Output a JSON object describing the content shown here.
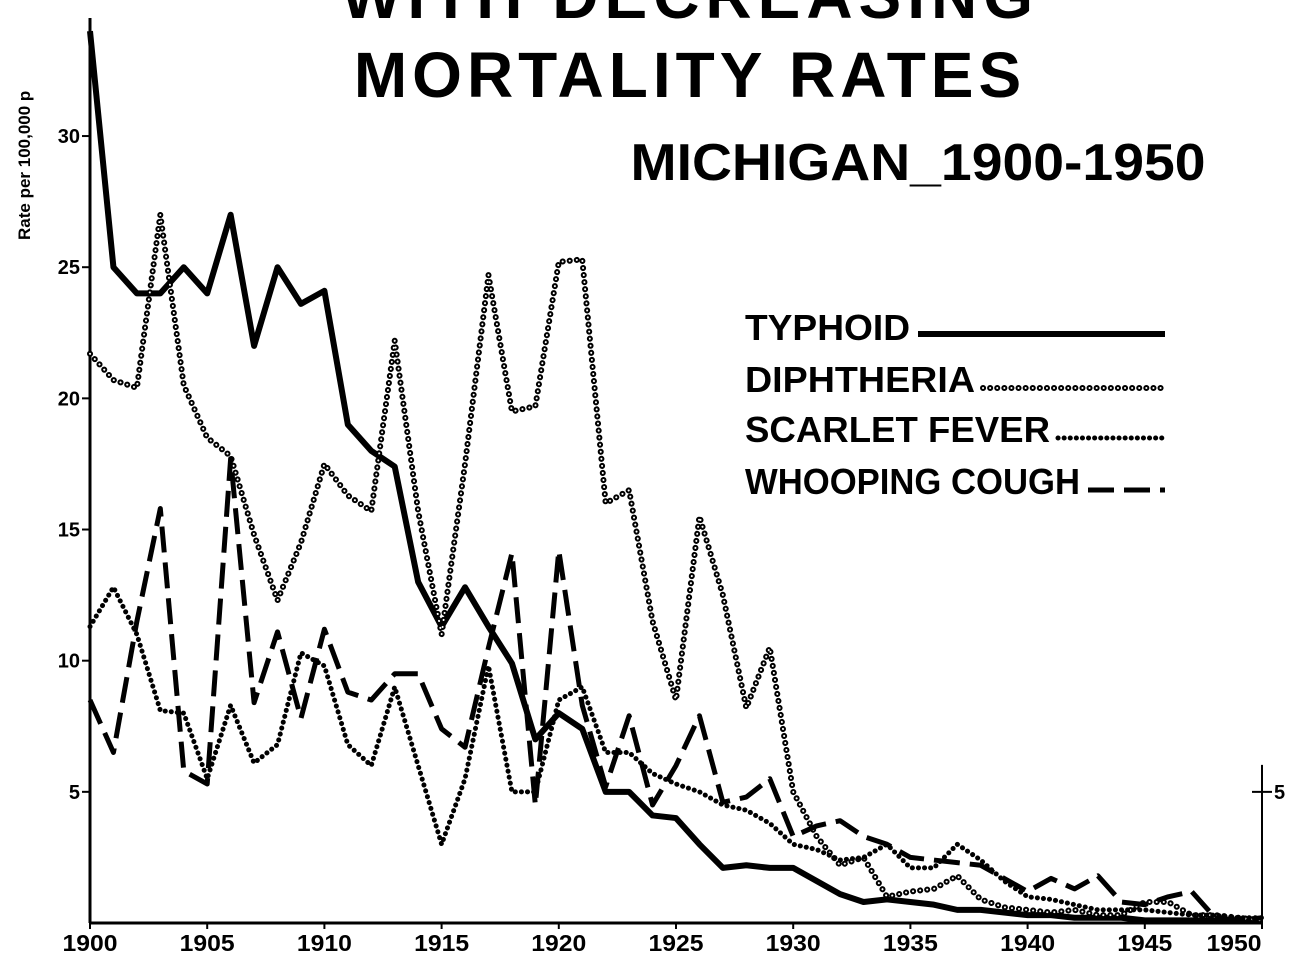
{
  "chart_data": {
    "type": "line",
    "title": "WITH DECREASING",
    "title_line2": "MORTALITY RATES",
    "subtitle": "MICHIGAN_1900-1950",
    "ylabel": "Rate per 100,000 p",
    "x": [
      1900,
      1901,
      1902,
      1903,
      1904,
      1905,
      1906,
      1907,
      1908,
      1909,
      1910,
      1911,
      1912,
      1913,
      1914,
      1915,
      1916,
      1917,
      1918,
      1919,
      1920,
      1921,
      1922,
      1923,
      1924,
      1925,
      1926,
      1927,
      1928,
      1929,
      1930,
      1931,
      1932,
      1933,
      1934,
      1935,
      1936,
      1937,
      1938,
      1939,
      1940,
      1941,
      1942,
      1943,
      1944,
      1945,
      1946,
      1947,
      1948,
      1949,
      1950
    ],
    "xlim": [
      1900,
      1950
    ],
    "xticks": [
      1900,
      1905,
      1910,
      1915,
      1920,
      1925,
      1930,
      1935,
      1940,
      1945,
      1950
    ],
    "ylim": [
      0,
      34.5
    ],
    "yticks": [
      5,
      10,
      15,
      20,
      25,
      30
    ],
    "y2lim": [
      0,
      34.5
    ],
    "y2ticks": [
      5
    ],
    "legend": "upper right",
    "series": [
      {
        "name": "TYPHOID",
        "color": "#000000",
        "style": "solid",
        "values": [
          34,
          25,
          24,
          24,
          25,
          24,
          27,
          22,
          25,
          23.6,
          24.1,
          19,
          18,
          17.4,
          13,
          11.3,
          12.8,
          11.3,
          9.9,
          7,
          8,
          7.4,
          5,
          5,
          4.1,
          4,
          3,
          2.1,
          2.2,
          2.1,
          2.1,
          1.6,
          1.1,
          0.8,
          0.9,
          0.8,
          0.7,
          0.5,
          0.5,
          0.4,
          0.3,
          0.3,
          0.2,
          0.2,
          0.2,
          0.1,
          0.1,
          0.1,
          0.1,
          0.1,
          0.1
        ]
      },
      {
        "name": "DIPHTHERIA",
        "color": "#000000",
        "style": "circles",
        "values": [
          21.7,
          20.7,
          20.4,
          27,
          20.5,
          18.5,
          17.8,
          14.8,
          12.3,
          14.5,
          17.5,
          16.3,
          15.7,
          22.2,
          15.7,
          11,
          17.5,
          24.7,
          19.5,
          19.7,
          25.2,
          25.3,
          16,
          16.5,
          11.5,
          8.5,
          15.5,
          12.5,
          8.2,
          10.5,
          5,
          3.3,
          2.2,
          2.5,
          1,
          1.2,
          1.3,
          1.8,
          0.9,
          0.6,
          0.5,
          0.4,
          0.5,
          0.3,
          0.3,
          0.8,
          0.8,
          0.3,
          0.3,
          0.2,
          0.1
        ]
      },
      {
        "name": "SCARLET FEVER",
        "color": "#000000",
        "style": "dots",
        "values": [
          11.3,
          12.8,
          11,
          8.1,
          8,
          5.5,
          8.3,
          6.1,
          6.8,
          10.3,
          9.8,
          6.8,
          6,
          9,
          6,
          3,
          5.5,
          9.8,
          5,
          5,
          8.5,
          9,
          6.5,
          6.5,
          5.7,
          5.3,
          5,
          4.5,
          4.3,
          3.8,
          3,
          2.8,
          2.4,
          2.5,
          3,
          2.1,
          2.1,
          3,
          2.4,
          1.6,
          1,
          0.9,
          0.7,
          0.5,
          0.5,
          0.5,
          0.4,
          0.3,
          0.3,
          0.2,
          0.2
        ]
      },
      {
        "name": "WHOOPING COUGH",
        "color": "#000000",
        "style": "dashes",
        "values": [
          8.5,
          6.5,
          11.5,
          15.8,
          5.8,
          5.3,
          17.7,
          8.4,
          11.1,
          7.8,
          11.2,
          8.8,
          8.5,
          9.5,
          9.5,
          7.4,
          6.7,
          10.5,
          14.1,
          4.5,
          14.2,
          8.3,
          5.2,
          7.9,
          4.5,
          6,
          7.9,
          4.6,
          4.8,
          5.5,
          3.3,
          3.7,
          3.9,
          3.3,
          3,
          2.5,
          2.4,
          2.3,
          2.2,
          1.7,
          1.2,
          1.7,
          1.3,
          1.8,
          0.8,
          0.7,
          1,
          1.2,
          0.2,
          0.1,
          0.2
        ]
      }
    ]
  }
}
